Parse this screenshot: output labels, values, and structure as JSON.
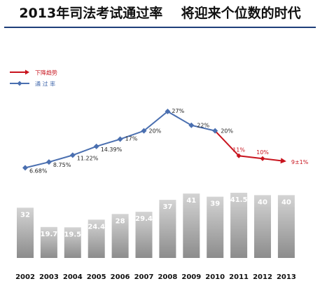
{
  "title": "2013年司法考试通过率    将迎来个位数的时代",
  "colors": {
    "divider": "#1f3f7a",
    "pass_rate_line": "#4a6fb0",
    "trend_line": "#c8141e",
    "bar_light": "#d4d4d4",
    "bar_dark": "#8c8c8c",
    "bar_value_text": "#ffffff"
  },
  "legend": [
    {
      "label": "下降趋势",
      "color": "#c8141e",
      "marker": "arrow"
    },
    {
      "label": "通 过 率",
      "color": "#4a6fb0",
      "marker": "diamond"
    }
  ],
  "chart_data": [
    {
      "type": "line",
      "series": [
        {
          "name": "通 过 率",
          "color": "#4a6fb0",
          "x": [
            "2002",
            "2003",
            "2004",
            "2005",
            "2006",
            "2007",
            "2008",
            "2009",
            "2010"
          ],
          "values": [
            6.68,
            8.75,
            11.22,
            14.39,
            17,
            20,
            27,
            22,
            20
          ],
          "labels": [
            "6.68%",
            "8.75%",
            "11.22%",
            "14.39%",
            "17%",
            "20%",
            "27%",
            "22%",
            "20%"
          ]
        },
        {
          "name": "下降趋势",
          "color": "#c8141e",
          "x": [
            "2010",
            "2011",
            "2012",
            "2013"
          ],
          "values": [
            20,
            11,
            10,
            9
          ],
          "labels": [
            "",
            "11%",
            "10%",
            "9±1%"
          ]
        }
      ],
      "ylim": [
        5,
        28
      ],
      "legend_position": "top-left",
      "grid": false
    },
    {
      "type": "bar",
      "categories": [
        "2002",
        "2003",
        "2004",
        "2005",
        "2006",
        "2007",
        "2008",
        "2009",
        "2010",
        "2011",
        "2012",
        "2013"
      ],
      "values": [
        32,
        19.7,
        19.5,
        24.4,
        28,
        29.4,
        37,
        41,
        39,
        41.5,
        40,
        40
      ],
      "labels": [
        "32",
        "19.7",
        "19.5",
        "24.4",
        "28",
        "29.4",
        "37",
        "41",
        "39",
        "41.5",
        "40",
        "40"
      ],
      "ylim": [
        0,
        41.5
      ],
      "grid": false
    }
  ]
}
